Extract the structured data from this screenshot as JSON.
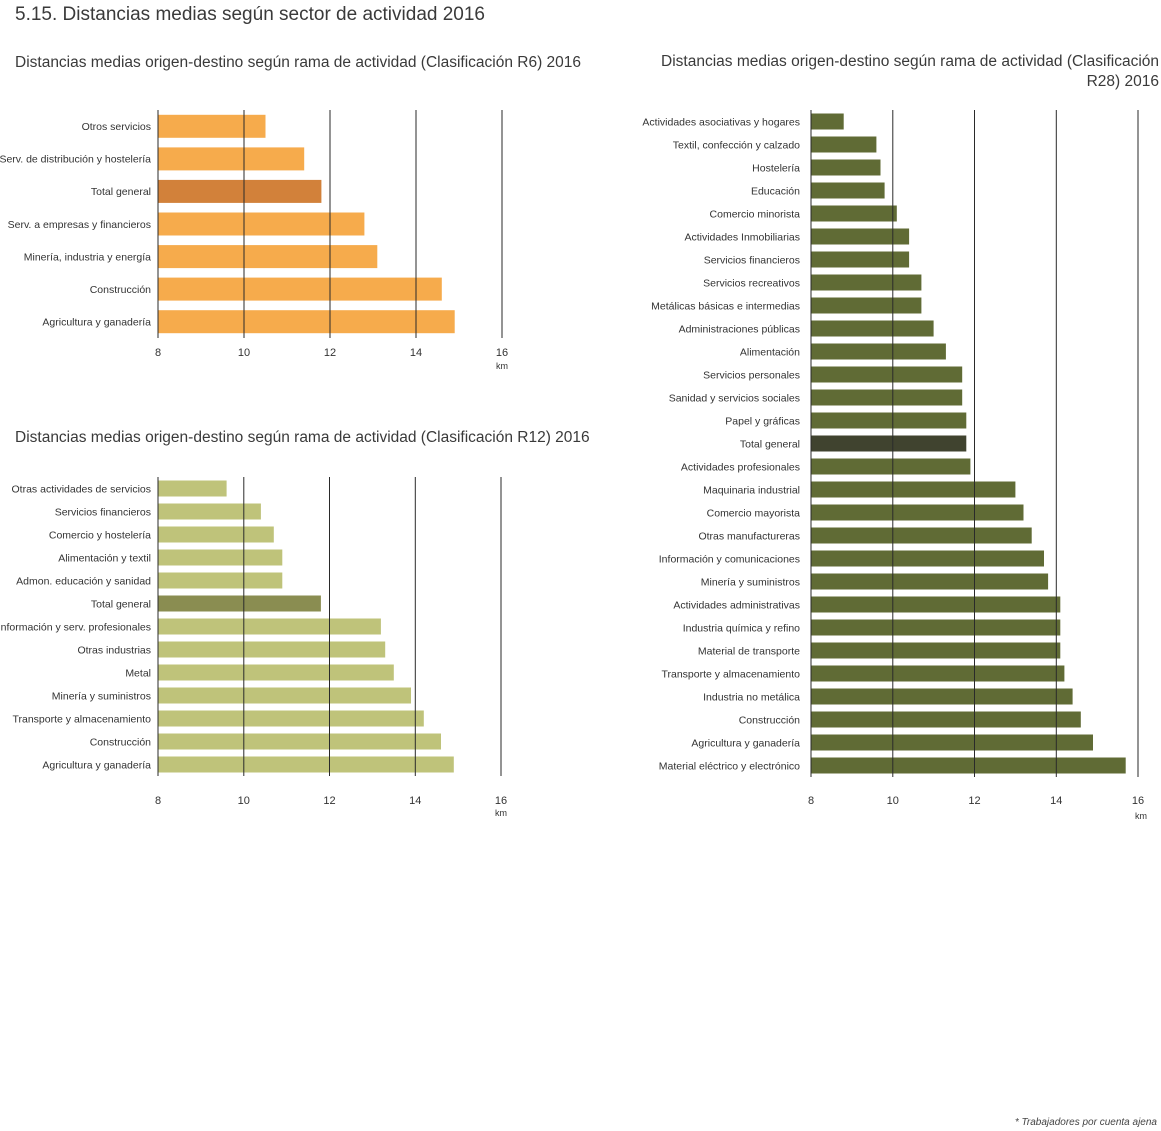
{
  "page_title": "5.15. Distancias medias según sector de actividad 2016",
  "footnote": "* Trabajadores por cuenta ajena",
  "chart_data": [
    {
      "type": "bar",
      "orientation": "horizontal",
      "title": "Distancias medias origen-destino según rama de actividad (Clasificación R6) 2016",
      "categories": [
        "Otros servicios",
        "Serv. de distribución y hostelería",
        "Total general",
        "Serv. a empresas y financieros",
        "Minería, industria y energía",
        "Construcción",
        "Agricultura y ganadería"
      ],
      "values": [
        10.5,
        11.4,
        11.8,
        12.8,
        13.1,
        14.6,
        14.9
      ],
      "highlight": "Total general",
      "xlim": [
        8,
        16
      ],
      "xticks": [
        8,
        10,
        12,
        14,
        16
      ],
      "xunit": "km",
      "grid": true,
      "colors": {
        "bar": "#f6ab4c",
        "highlight": "#d2813a"
      }
    },
    {
      "type": "bar",
      "orientation": "horizontal",
      "title": "Distancias medias origen-destino según rama de actividad (Clasificación R12) 2016",
      "categories": [
        "Otras actividades de servicios",
        "Servicios financieros",
        "Comercio y hostelería",
        "Alimentación y textil",
        "Admon. educación y sanidad",
        "Total general",
        "Información y serv. profesionales",
        "Otras industrias",
        "Metal",
        "Minería y suministros",
        "Transporte y almacenamiento",
        "Construcción",
        "Agricultura y ganadería"
      ],
      "values": [
        9.6,
        10.4,
        10.7,
        10.9,
        10.9,
        11.8,
        13.2,
        13.3,
        13.5,
        13.9,
        14.2,
        14.6,
        14.9
      ],
      "highlight": "Total general",
      "xlim": [
        8,
        16
      ],
      "xticks": [
        8,
        10,
        12,
        14,
        16
      ],
      "xunit": "km",
      "grid": true,
      "colors": {
        "bar": "#bfc37a",
        "highlight": "#8a8d51"
      }
    },
    {
      "type": "bar",
      "orientation": "horizontal",
      "title": "Distancias medias origen-destino según rama de actividad (Clasificación R28) 2016",
      "categories": [
        "Actividades asociativas y hogares",
        "Textil, confección y calzado",
        "Hostelería",
        "Educación",
        "Comercio minorista",
        "Actividades Inmobiliarias",
        "Servicios financieros",
        "Servicios  recreativos",
        "Metálicas básicas e intermedias",
        "Administraciones públicas",
        "Alimentación",
        "Servicios personales",
        "Sanidad y servicios sociales",
        "Papel y gráficas",
        "Total general",
        "Actividades profesionales",
        "Maquinaria industrial",
        "Comercio mayorista",
        "Otras manufactureras",
        "Información y comunicaciones",
        "Minería y suministros",
        "Actividades administrativas",
        "Industria química y refino",
        "Material de transporte",
        "Transporte y almacenamiento",
        "Industria no metálica",
        "Construcción",
        "Agricultura y ganadería",
        "Material eléctrico y electrónico"
      ],
      "values": [
        8.8,
        9.6,
        9.7,
        9.8,
        10.1,
        10.4,
        10.4,
        10.7,
        10.7,
        11.0,
        11.3,
        11.7,
        11.7,
        11.8,
        11.8,
        11.9,
        13.0,
        13.2,
        13.4,
        13.7,
        13.8,
        14.1,
        14.1,
        14.1,
        14.2,
        14.4,
        14.6,
        14.9,
        15.7
      ],
      "highlight": "Total general",
      "xlim": [
        8,
        16
      ],
      "xticks": [
        8,
        10,
        12,
        14,
        16
      ],
      "xunit": "km",
      "grid": true,
      "colors": {
        "bar": "#606b35",
        "highlight": "#40432f"
      }
    }
  ]
}
